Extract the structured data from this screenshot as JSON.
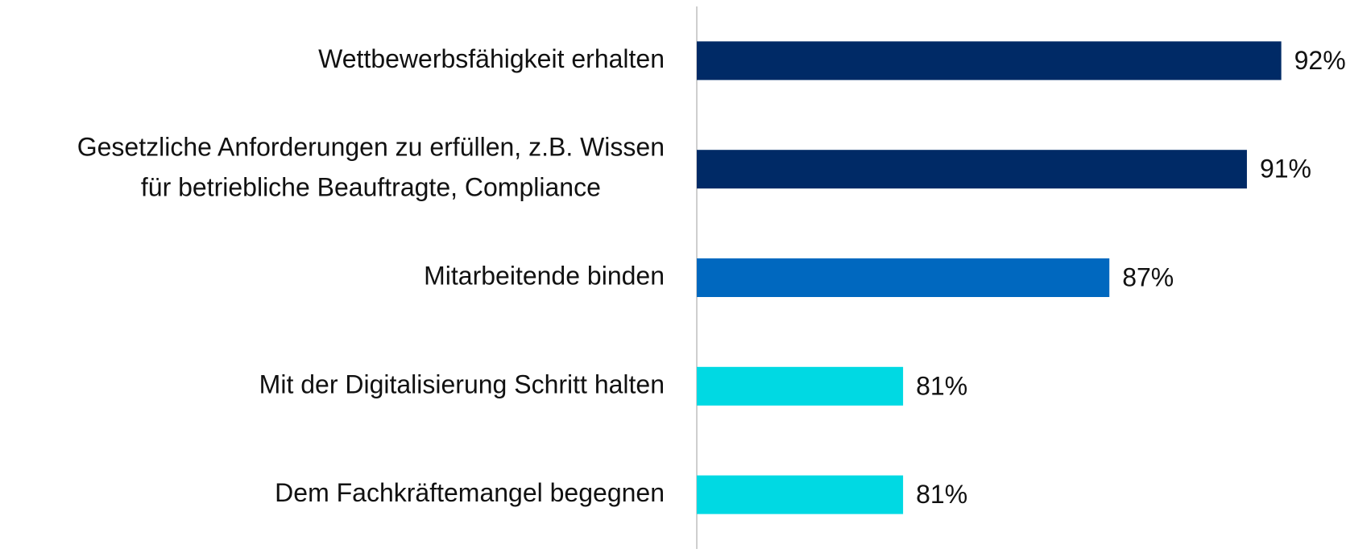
{
  "chart_data": {
    "type": "barh",
    "categories": [
      "Wettbewerbsfähigkeit erhalten",
      [
        "Gesetzliche Anforderungen zu erfüllen, z.B. Wissen",
        "für betriebliche Beauftragte, Compliance"
      ],
      "Mitarbeitende binden",
      "Mit der Digitalisierung Schritt halten",
      "Dem Fachkräftemangel begegnen"
    ],
    "values": [
      92,
      91,
      87,
      81,
      81
    ],
    "value_labels": [
      "92%",
      "91%",
      "87%",
      "81%",
      "81%"
    ],
    "colors": [
      "#002a66",
      "#002a66",
      "#0068bf",
      "#00d9e3",
      "#00d9e3"
    ],
    "xlim": [
      75,
      94
    ],
    "grid": false
  }
}
